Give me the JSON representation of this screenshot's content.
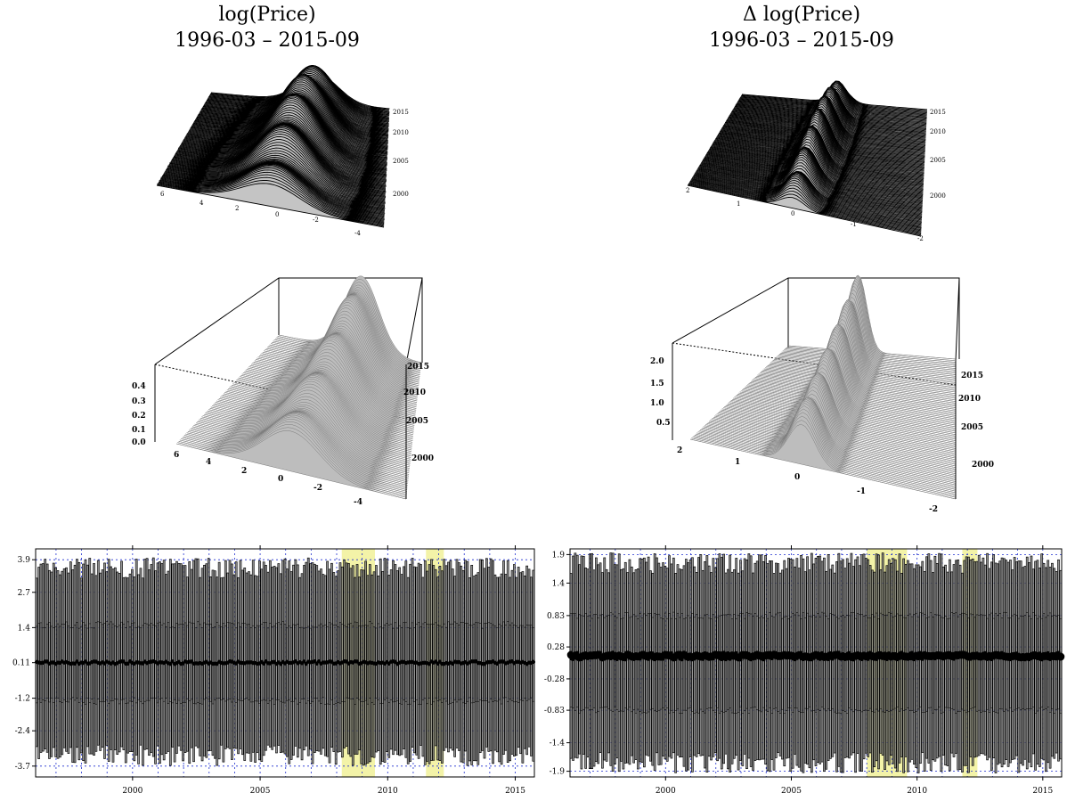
{
  "columns": [
    {
      "title_line1": "log(Price)",
      "title_line2": "1996-03 – 2015-09",
      "ridge_ticks_x": [
        "6",
        "4",
        "2",
        "0",
        "-2",
        "-4"
      ],
      "ridge_ticks_year": [
        "2015",
        "2010",
        "2005",
        "2000"
      ],
      "surface_ticks_z": [
        "0.4",
        "0.3",
        "0.2",
        "0.1",
        "0.0"
      ],
      "surface_ticks_x": [
        "6",
        "4",
        "2",
        "0",
        "-2",
        "-4"
      ],
      "surface_ticks_year": [
        "2015",
        "2010",
        "2005",
        "2000"
      ]
    },
    {
      "title_line1": "Δ log(Price)",
      "title_line2": "1996-03 – 2015-09",
      "ridge_ticks_x": [
        "2",
        "1",
        "0",
        "-1",
        "-2"
      ],
      "ridge_ticks_year": [
        "2015",
        "2010",
        "2005",
        "2000"
      ],
      "surface_ticks_z": [
        "2.0",
        "1.5",
        "1.0",
        "0.5"
      ],
      "surface_ticks_x": [
        "2",
        "1",
        "0",
        "-1",
        "-2"
      ],
      "surface_ticks_year": [
        "2015",
        "2010",
        "2005",
        "2000"
      ]
    }
  ],
  "colors": {
    "surface_gray": "#bdbdbd",
    "ridge_fill": "#c4c4c4",
    "grid_blue": "#1f2fcf",
    "recession_yellow": "#f3f3a8"
  },
  "chart_data": [
    {
      "type": "boxplot",
      "panel": "bottom-left",
      "x_ticks": [
        "2000",
        "2005",
        "2010",
        "2015"
      ],
      "y_ticks": [
        "3.9",
        "2.7",
        "1.4",
        "0.11",
        "-1.2",
        "-2.4",
        "-3.7"
      ],
      "x_range": [
        1996.2,
        2015.75
      ],
      "y_range": [
        -4.1,
        4.3
      ],
      "n_boxes": 235,
      "whisker_high": 3.6,
      "whisker_low": -3.3,
      "q3": 1.5,
      "q1": -1.3,
      "median": 0.11,
      "shaded_periods": [
        [
          2008.2,
          2009.5
        ],
        [
          2011.5,
          2012.2
        ]
      ],
      "y_axis_side": "left",
      "grid": true
    },
    {
      "type": "boxplot",
      "panel": "bottom-right",
      "x_ticks": [
        "2000",
        "2005",
        "2010",
        "2015"
      ],
      "y_ticks": [
        "1.9",
        "1.4",
        "0.83",
        "0.28",
        "-0.28",
        "-0.83",
        "-1.4",
        "-1.9"
      ],
      "x_range": [
        1996.2,
        2015.75
      ],
      "y_range": [
        -2.0,
        2.0
      ],
      "n_boxes": 235,
      "whisker_high": 1.75,
      "whisker_low": -1.75,
      "q3": 0.83,
      "q1": -0.83,
      "median": 0.12,
      "shaded_periods": [
        [
          2008.0,
          2009.6
        ],
        [
          2011.8,
          2012.4
        ]
      ],
      "y_axis_side": "left",
      "grid": true
    }
  ]
}
